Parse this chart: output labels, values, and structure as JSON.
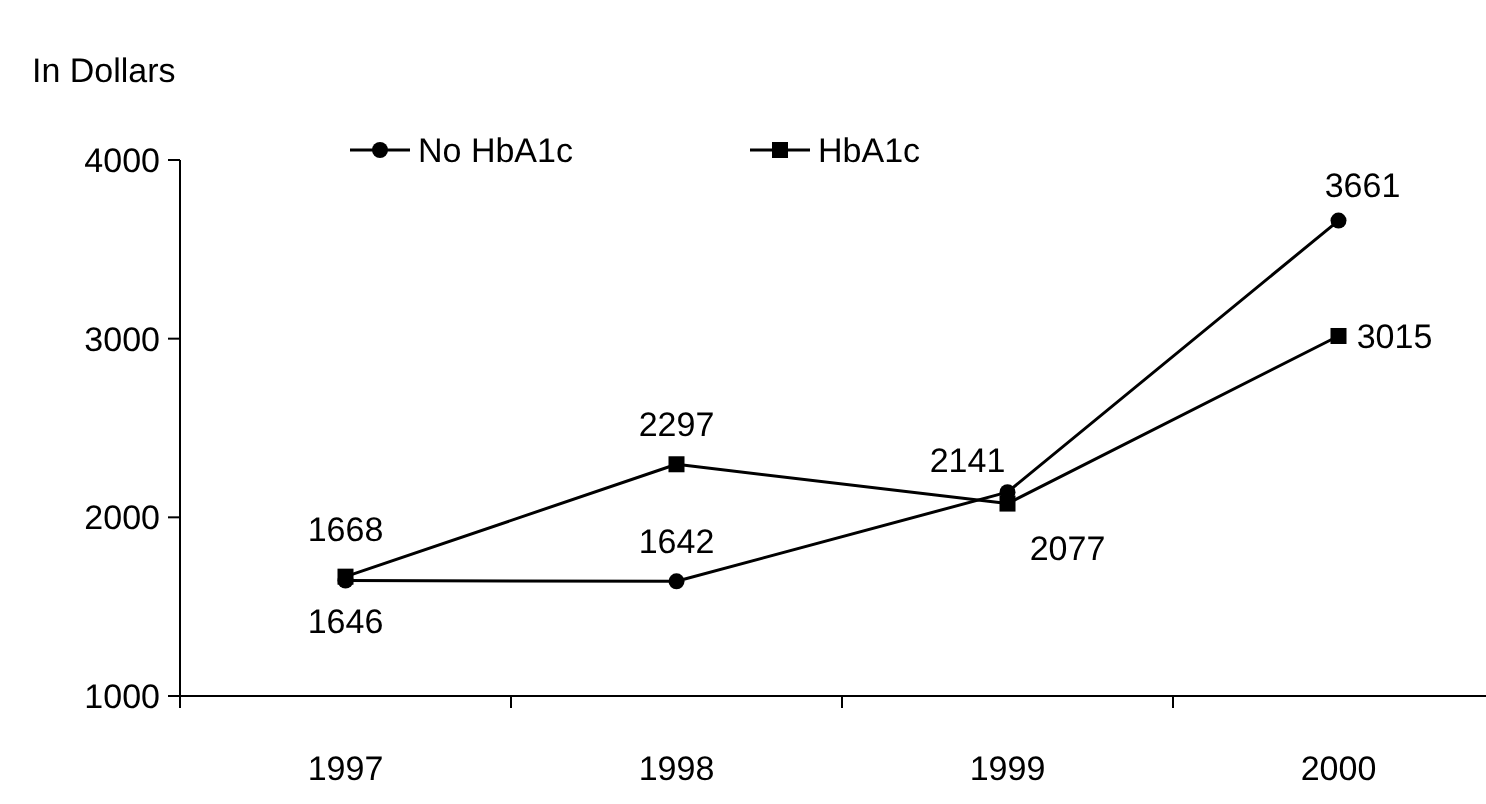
{
  "chart_data": {
    "type": "line",
    "ylabel": "In Dollars",
    "categories": [
      "1997",
      "1998",
      "1999",
      "2000"
    ],
    "series": [
      {
        "name": "No HbA1c",
        "color": "#000000",
        "marker": "circle",
        "values": [
          1646,
          1642,
          2141,
          3661
        ]
      },
      {
        "name": "HbA1c",
        "color": "#000000",
        "marker": "square",
        "values": [
          1668,
          2297,
          2077,
          3015
        ]
      }
    ],
    "ylim": [
      1000,
      4000
    ],
    "yticks": [
      1000,
      2000,
      3000,
      4000
    ],
    "grid": false,
    "legend": "top left",
    "data_labels": true,
    "line_style": "solid"
  }
}
